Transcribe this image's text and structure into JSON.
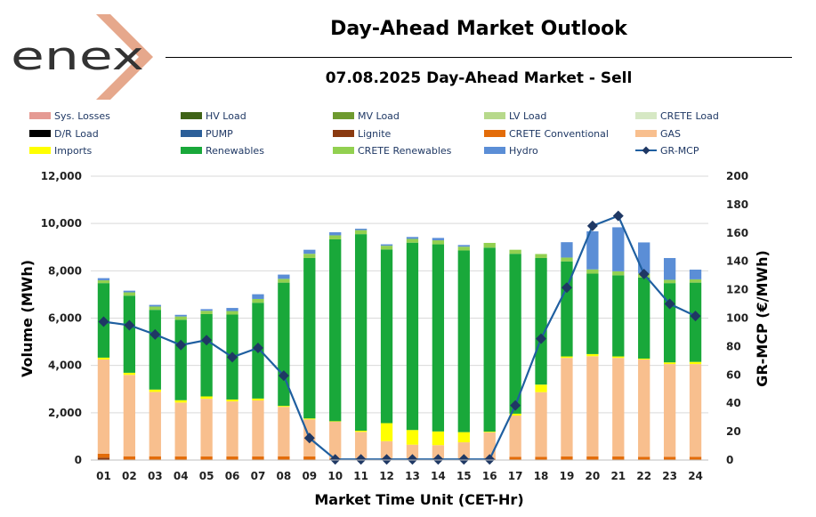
{
  "header": {
    "logo_text": "enex",
    "title": "Day-Ahead Market Outlook",
    "subtitle": "07.08.2025  Day-Ahead Market - Sell"
  },
  "colors": {
    "Sys. Losses": "#e59a93",
    "HV Load": "#3f6317",
    "MV Load": "#6e9a2f",
    "LV Load": "#b7d98b",
    "CRETE Load": "#d6e8c4",
    "D/R Load": "#000000",
    "PUMP": "#2c5f99",
    "Lignite": "#8a3a10",
    "CRETE Conventional": "#e36c09",
    "GAS": "#f8bf8e",
    "Imports": "#ffff00",
    "Renewables": "#19a83a",
    "CRETE Renewables": "#92d050",
    "Hydro": "#5b8ed6",
    "GR-MCP": "#1f5fa0",
    "GR-MCP-marker": "#1f3864"
  },
  "chart_data": {
    "type": "bar",
    "stacked": true,
    "xlabel": "Market Time Unit (CET-Hr)",
    "ylabel": "Volume (MWh)",
    "y2label": "GR-MCP (€/MWh)",
    "ylim": [
      0,
      12000
    ],
    "y2lim": [
      0,
      200
    ],
    "yticks": [
      "0",
      "2,000",
      "4,000",
      "6,000",
      "8,000",
      "10,000",
      "12,000"
    ],
    "y2ticks": [
      "0",
      "20",
      "40",
      "60",
      "80",
      "100",
      "120",
      "140",
      "160",
      "180",
      "200"
    ],
    "categories": [
      "01",
      "02",
      "03",
      "04",
      "05",
      "06",
      "07",
      "08",
      "09",
      "10",
      "11",
      "12",
      "13",
      "14",
      "15",
      "16",
      "17",
      "18",
      "19",
      "20",
      "21",
      "22",
      "23",
      "24"
    ],
    "legend": [
      "Sys. Losses",
      "HV Load",
      "MV Load",
      "LV Load",
      "CRETE Load",
      "D/R Load",
      "PUMP",
      "Lignite",
      "CRETE Conventional",
      "GAS",
      "Imports",
      "Renewables",
      "CRETE Renewables",
      "Hydro",
      "GR-MCP"
    ],
    "series": [
      {
        "name": "Lignite",
        "values": [
          100,
          0,
          0,
          0,
          0,
          0,
          0,
          0,
          0,
          0,
          0,
          0,
          0,
          0,
          0,
          0,
          0,
          0,
          0,
          0,
          0,
          0,
          0,
          0
        ]
      },
      {
        "name": "CRETE Conventional",
        "values": [
          170,
          160,
          160,
          150,
          150,
          150,
          150,
          160,
          150,
          60,
          60,
          60,
          60,
          60,
          60,
          60,
          140,
          140,
          150,
          150,
          150,
          140,
          140,
          140
        ]
      },
      {
        "name": "GAS",
        "values": [
          3980,
          3440,
          2720,
          2280,
          2440,
          2330,
          2370,
          2090,
          1570,
          1560,
          1130,
          740,
          590,
          570,
          690,
          1110,
          1740,
          2730,
          4170,
          4240,
          4170,
          4110,
          3920,
          3920
        ]
      },
      {
        "name": "Imports",
        "values": [
          80,
          90,
          100,
          100,
          100,
          80,
          80,
          40,
          40,
          20,
          50,
          760,
          620,
          580,
          430,
          30,
          80,
          320,
          60,
          90,
          60,
          40,
          70,
          90
        ]
      },
      {
        "name": "Renewables",
        "values": [
          3150,
          3260,
          3370,
          3400,
          3480,
          3590,
          4050,
          5210,
          6780,
          7690,
          8310,
          7340,
          7920,
          7910,
          7680,
          7780,
          6760,
          5350,
          4020,
          3400,
          3430,
          3430,
          3350,
          3350
        ]
      },
      {
        "name": "CRETE Renewables",
        "values": [
          120,
          140,
          140,
          140,
          140,
          150,
          160,
          160,
          180,
          170,
          170,
          160,
          160,
          170,
          160,
          200,
          170,
          170,
          160,
          180,
          170,
          170,
          140,
          140
        ]
      },
      {
        "name": "Hydro",
        "values": [
          90,
          70,
          70,
          70,
          70,
          130,
          200,
          180,
          170,
          130,
          60,
          60,
          80,
          100,
          70,
          0,
          0,
          0,
          650,
          1610,
          1860,
          1310,
          920,
          410
        ]
      }
    ],
    "line": {
      "name": "GR-MCP",
      "axis": "right",
      "values": [
        97.5,
        95,
        88.5,
        81,
        84.5,
        72.5,
        79,
        59.5,
        15.5,
        0.5,
        0.5,
        0.5,
        0.5,
        0.5,
        0.5,
        0.5,
        38.5,
        85.5,
        121.5,
        165,
        172,
        131,
        110,
        101.5
      ]
    }
  }
}
